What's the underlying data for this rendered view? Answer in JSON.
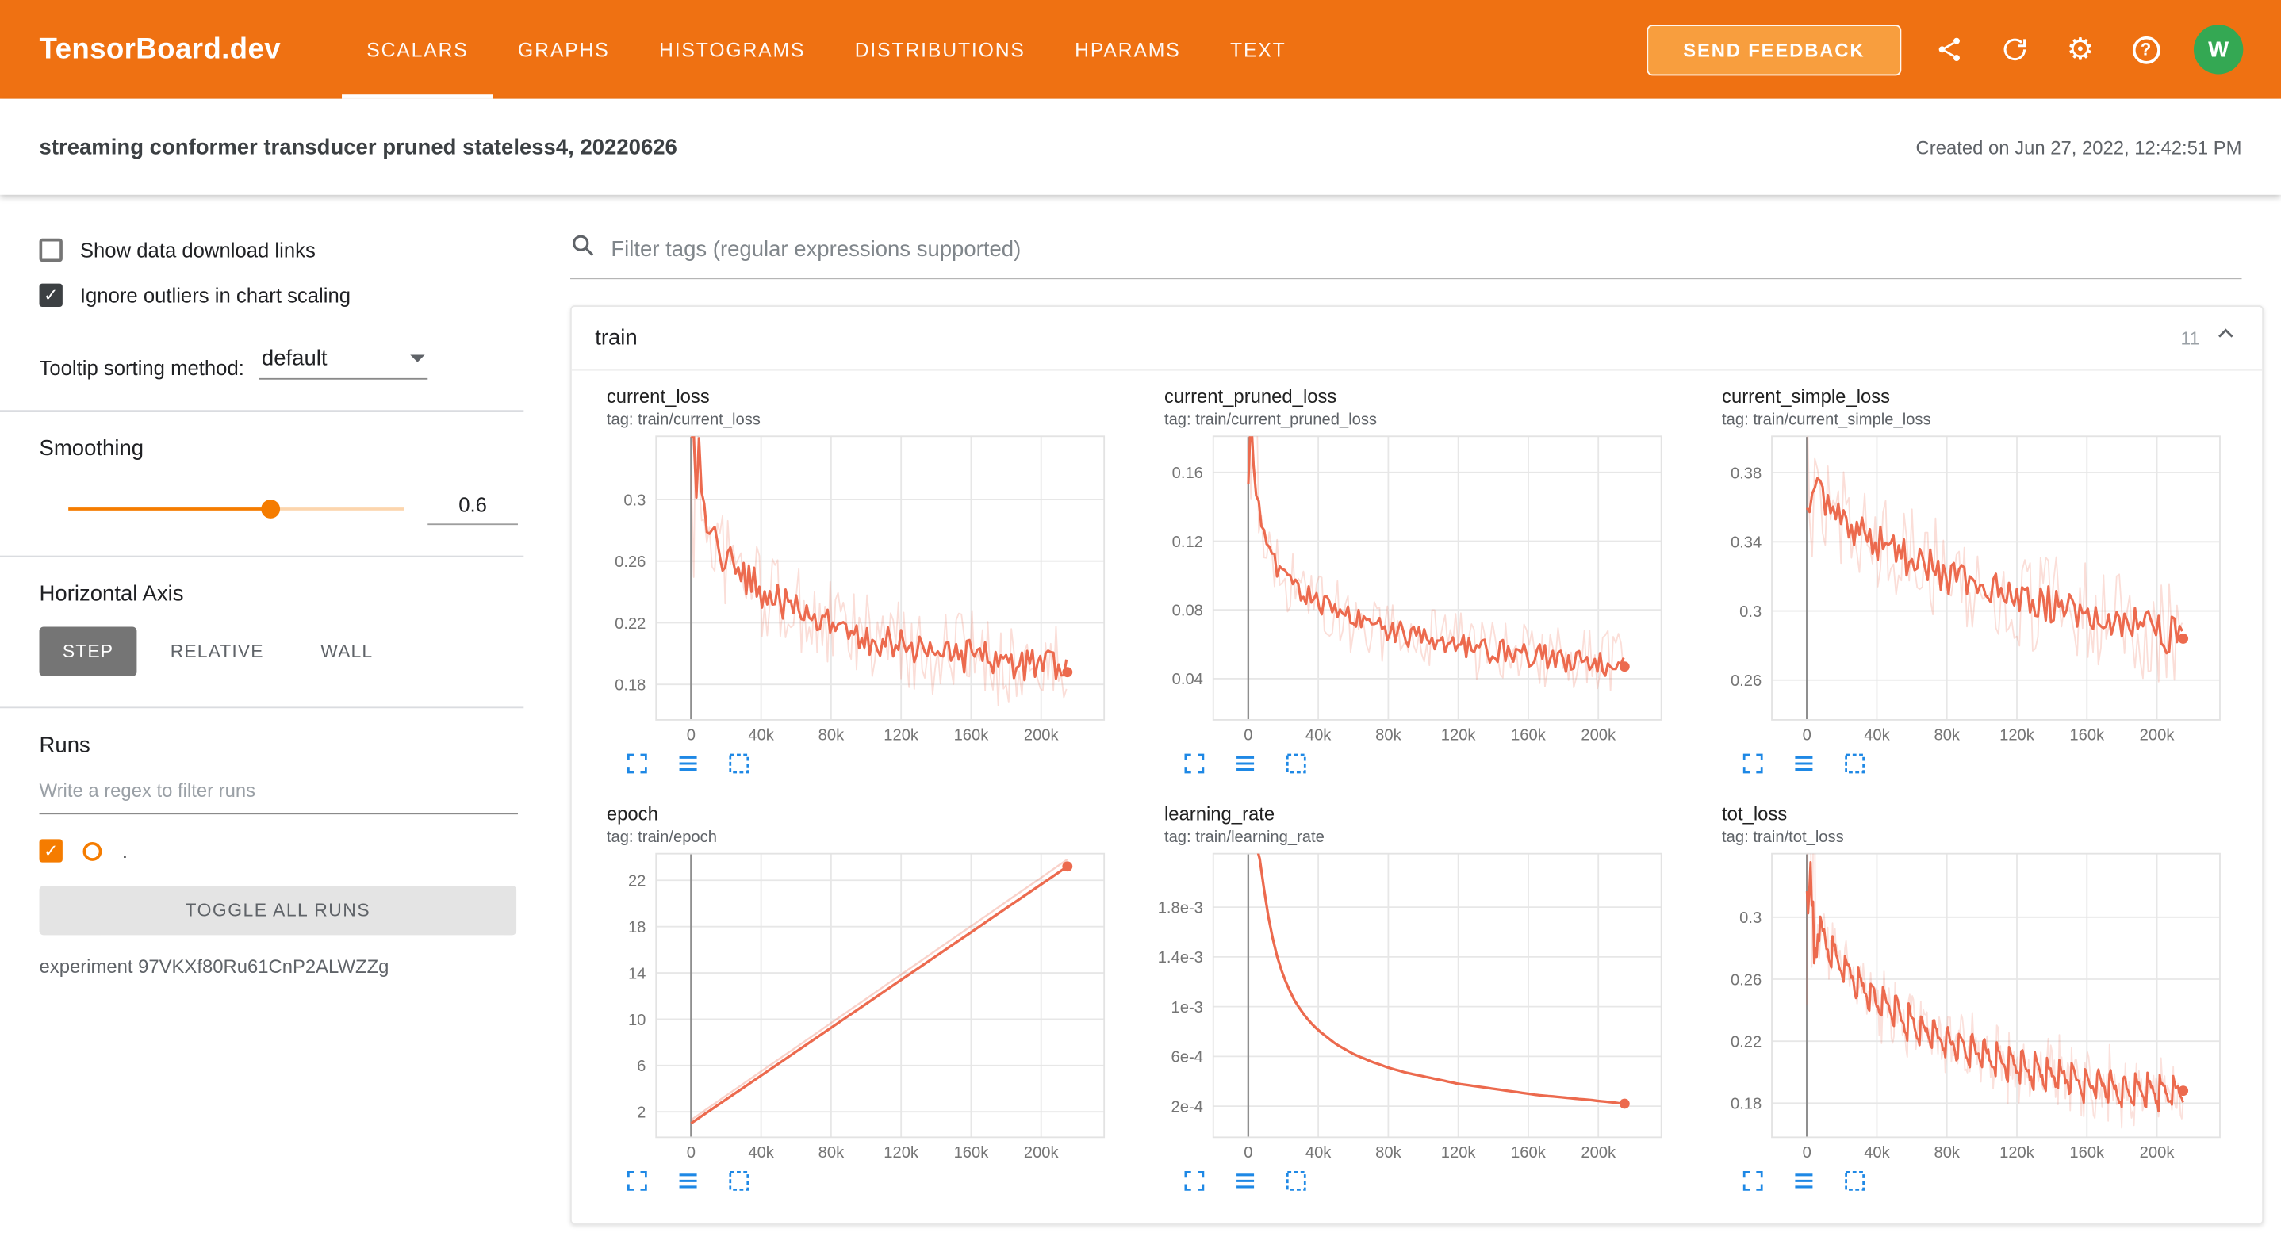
{
  "colors": {
    "header_bg": "#ef7112",
    "feedback_bg": "#f89e3e",
    "accent": "#f57c00",
    "line": "#ec6a4e",
    "avatar_bg": "#34a853",
    "icon_blue": "#1e88e5"
  },
  "icons": {
    "check": "✓",
    "gear": "⚙",
    "question": "?"
  },
  "header": {
    "brand": "TensorBoard.dev",
    "tabs": [
      "SCALARS",
      "GRAPHS",
      "HISTOGRAMS",
      "DISTRIBUTIONS",
      "HPARAMS",
      "TEXT"
    ],
    "active_tab": "SCALARS",
    "feedback_label": "SEND FEEDBACK",
    "avatar_letter": "W"
  },
  "subheader": {
    "title": "streaming conformer transducer pruned stateless4, 20220626",
    "created": "Created on Jun 27, 2022, 12:42:51 PM"
  },
  "sidebar": {
    "show_links_label": "Show data download links",
    "ignore_outliers_label": "Ignore outliers in chart scaling",
    "tooltip_label": "Tooltip sorting method:",
    "tooltip_value": "default",
    "smoothing_label": "Smoothing",
    "smoothing_value": "0.6",
    "axis_label": "Horizontal Axis",
    "axis_options": [
      "STEP",
      "RELATIVE",
      "WALL"
    ],
    "axis_selected": "STEP",
    "runs_label": "Runs",
    "runs_placeholder": "Write a regex to filter runs",
    "run_name": ".",
    "toggle_label": "TOGGLE ALL RUNS",
    "experiment": "experiment 97VKXf80Ru61CnP2ALWZZg"
  },
  "main": {
    "filter_placeholder": "Filter tags (regular expressions supported)",
    "group_title": "train",
    "group_count": "11"
  },
  "chart_data": [
    {
      "type": "line",
      "title": "current_loss",
      "tag": "tag: train/current_loss",
      "x_ticks": {
        "values": [
          0,
          40000,
          80000,
          120000,
          160000,
          200000
        ],
        "labels": [
          "0",
          "40k",
          "80k",
          "120k",
          "160k",
          "200k"
        ]
      },
      "y_ticks": {
        "values": [
          0.18,
          0.22,
          0.26,
          0.3
        ],
        "labels": [
          "0.18",
          "0.22",
          "0.26",
          "0.3"
        ]
      },
      "xlim": [
        -20000,
        236000
      ],
      "ylim": [
        0.157,
        0.341
      ],
      "step": 1500,
      "trend": [
        [
          0,
          0.302
        ],
        [
          3000,
          0.315
        ],
        [
          8000,
          0.285
        ],
        [
          15000,
          0.268
        ],
        [
          25000,
          0.255
        ],
        [
          40000,
          0.241
        ],
        [
          60000,
          0.227
        ],
        [
          80000,
          0.217
        ],
        [
          100000,
          0.21
        ],
        [
          120000,
          0.205
        ],
        [
          140000,
          0.201
        ],
        [
          160000,
          0.198
        ],
        [
          180000,
          0.195
        ],
        [
          200000,
          0.192
        ],
        [
          215000,
          0.188
        ]
      ],
      "series": [
        {
          "name": "raw",
          "noise": 0.03,
          "burst": 3.5,
          "width": 1,
          "opacity": 0.22
        },
        {
          "name": "smoothed",
          "noise": 0.011,
          "burst": 3.5,
          "width": 1.7,
          "opacity": 1,
          "dot": true
        }
      ]
    },
    {
      "type": "line",
      "title": "current_pruned_loss",
      "tag": "tag: train/current_pruned_loss",
      "x_ticks": {
        "values": [
          0,
          40000,
          80000,
          120000,
          160000,
          200000
        ],
        "labels": [
          "0",
          "40k",
          "80k",
          "120k",
          "160k",
          "200k"
        ]
      },
      "y_ticks": {
        "values": [
          0.04,
          0.08,
          0.12,
          0.16
        ],
        "labels": [
          "0.04",
          "0.08",
          "0.12",
          "0.16"
        ]
      },
      "xlim": [
        -20000,
        236000
      ],
      "ylim": [
        0.016,
        0.181
      ],
      "step": 1500,
      "trend": [
        [
          0,
          0.165
        ],
        [
          3000,
          0.172
        ],
        [
          8000,
          0.124
        ],
        [
          15000,
          0.107
        ],
        [
          25000,
          0.095
        ],
        [
          40000,
          0.084
        ],
        [
          60000,
          0.074
        ],
        [
          80000,
          0.068
        ],
        [
          100000,
          0.063
        ],
        [
          120000,
          0.059
        ],
        [
          140000,
          0.056
        ],
        [
          160000,
          0.054
        ],
        [
          180000,
          0.051
        ],
        [
          200000,
          0.049
        ],
        [
          215000,
          0.047
        ]
      ],
      "series": [
        {
          "name": "raw",
          "noise": 0.02,
          "burst": 4,
          "width": 1,
          "opacity": 0.22
        },
        {
          "name": "smoothed",
          "noise": 0.007,
          "burst": 4,
          "width": 1.7,
          "opacity": 1,
          "dot": true
        }
      ]
    },
    {
      "type": "line",
      "title": "current_simple_loss",
      "tag": "tag: train/current_simple_loss",
      "x_ticks": {
        "values": [
          0,
          40000,
          80000,
          120000,
          160000,
          200000
        ],
        "labels": [
          "0",
          "40k",
          "80k",
          "120k",
          "160k",
          "200k"
        ]
      },
      "y_ticks": {
        "values": [
          0.26,
          0.3,
          0.34,
          0.38
        ],
        "labels": [
          "0.26",
          "0.3",
          "0.34",
          "0.38"
        ]
      },
      "xlim": [
        -20000,
        236000
      ],
      "ylim": [
        0.237,
        0.401
      ],
      "step": 1500,
      "trend": [
        [
          0,
          0.382
        ],
        [
          3000,
          0.392
        ],
        [
          8000,
          0.37
        ],
        [
          15000,
          0.36
        ],
        [
          25000,
          0.35
        ],
        [
          40000,
          0.34
        ],
        [
          60000,
          0.329
        ],
        [
          80000,
          0.321
        ],
        [
          100000,
          0.314
        ],
        [
          120000,
          0.308
        ],
        [
          140000,
          0.303
        ],
        [
          160000,
          0.298
        ],
        [
          180000,
          0.293
        ],
        [
          200000,
          0.288
        ],
        [
          215000,
          0.284
        ]
      ],
      "series": [
        {
          "name": "raw",
          "noise": 0.03,
          "burst": 3.5,
          "width": 1,
          "opacity": 0.22
        },
        {
          "name": "smoothed",
          "noise": 0.011,
          "burst": 3.5,
          "width": 1.7,
          "opacity": 1,
          "dot": true
        }
      ]
    },
    {
      "type": "line",
      "title": "epoch",
      "tag": "tag: train/epoch",
      "x_ticks": {
        "values": [
          0,
          40000,
          80000,
          120000,
          160000,
          200000
        ],
        "labels": [
          "0",
          "40k",
          "80k",
          "120k",
          "160k",
          "200k"
        ]
      },
      "y_ticks": {
        "values": [
          2,
          6,
          10,
          14,
          18,
          22
        ],
        "labels": [
          "2",
          "6",
          "10",
          "14",
          "18",
          "22"
        ]
      },
      "xlim": [
        -20000,
        236000
      ],
      "ylim": [
        -0.2,
        24.3
      ],
      "step": 10000,
      "trend": [
        [
          0,
          1.0
        ],
        [
          215000,
          23.2
        ]
      ],
      "series": [
        {
          "name": "raw",
          "trend": [
            [
              0,
              1.3
            ],
            [
              215000,
              23.8
            ]
          ],
          "noise": 0,
          "width": 1.3,
          "opacity": 0.3
        },
        {
          "name": "smoothed",
          "trend": [
            [
              0,
              1.0
            ],
            [
              215000,
              23.2
            ]
          ],
          "noise": 0,
          "width": 1.8,
          "opacity": 1,
          "dot": true
        }
      ]
    },
    {
      "type": "line",
      "title": "learning_rate",
      "tag": "tag: train/learning_rate",
      "x_ticks": {
        "values": [
          0,
          40000,
          80000,
          120000,
          160000,
          200000
        ],
        "labels": [
          "0",
          "40k",
          "80k",
          "120k",
          "160k",
          "200k"
        ]
      },
      "y_ticks": {
        "values": [
          0.0002,
          0.0006,
          0.001,
          0.0014,
          0.0018
        ],
        "labels": [
          "2e-4",
          "6e-4",
          "1e-3",
          "1.4e-3",
          "1.8e-3"
        ]
      },
      "xlim": [
        -20000,
        236000
      ],
      "ylim": [
        -5e-05,
        0.00223
      ],
      "step": 2500,
      "trend": [
        [
          4000,
          0.00232
        ],
        [
          6000,
          0.00224
        ],
        [
          8000,
          0.00204
        ],
        [
          10000,
          0.00185
        ],
        [
          12000,
          0.00168
        ],
        [
          15000,
          0.00148
        ],
        [
          18000,
          0.00133
        ],
        [
          22000,
          0.00118
        ],
        [
          26000,
          0.00106
        ],
        [
          30000,
          0.00097
        ],
        [
          35000,
          0.00088
        ],
        [
          40000,
          0.00081
        ],
        [
          50000,
          0.0007
        ],
        [
          60000,
          0.00062
        ],
        [
          70000,
          0.00056
        ],
        [
          80000,
          0.00051
        ],
        [
          90000,
          0.00047
        ],
        [
          100000,
          0.00044
        ],
        [
          110000,
          0.00041
        ],
        [
          120000,
          0.00038
        ],
        [
          135000,
          0.00035
        ],
        [
          150000,
          0.00032
        ],
        [
          165000,
          0.00029
        ],
        [
          180000,
          0.00027
        ],
        [
          195000,
          0.00025
        ],
        [
          215000,
          0.00022
        ]
      ],
      "series": [
        {
          "name": "smoothed",
          "noise": 0,
          "width": 1.8,
          "opacity": 1,
          "dot": true
        }
      ]
    },
    {
      "type": "line",
      "title": "tot_loss",
      "tag": "tag: train/tot_loss",
      "x_ticks": {
        "values": [
          0,
          40000,
          80000,
          120000,
          160000,
          200000
        ],
        "labels": [
          "0",
          "40k",
          "80k",
          "120k",
          "160k",
          "200k"
        ]
      },
      "y_ticks": {
        "values": [
          0.18,
          0.22,
          0.26,
          0.3
        ],
        "labels": [
          "0.18",
          "0.22",
          "0.26",
          "0.3"
        ]
      },
      "xlim": [
        -20000,
        236000
      ],
      "ylim": [
        0.158,
        0.341
      ],
      "step": 700,
      "trend": [
        [
          0,
          0.3
        ],
        [
          3000,
          0.308
        ],
        [
          8000,
          0.29
        ],
        [
          15000,
          0.276
        ],
        [
          25000,
          0.262
        ],
        [
          40000,
          0.246
        ],
        [
          60000,
          0.231
        ],
        [
          80000,
          0.22
        ],
        [
          100000,
          0.211
        ],
        [
          120000,
          0.204
        ],
        [
          140000,
          0.198
        ],
        [
          160000,
          0.193
        ],
        [
          180000,
          0.189
        ],
        [
          200000,
          0.186
        ],
        [
          215000,
          0.188
        ]
      ],
      "series": [
        {
          "name": "raw",
          "noise": 0.016,
          "burst": 8,
          "wave_amp": 0.012,
          "wave_period": 7200,
          "width": 1,
          "opacity": 0.2
        },
        {
          "name": "smoothed",
          "noise": 0.003,
          "burst": 13,
          "wave_amp": 0.011,
          "wave_period": 7200,
          "width": 1.6,
          "opacity": 1,
          "dot": true
        }
      ]
    }
  ]
}
